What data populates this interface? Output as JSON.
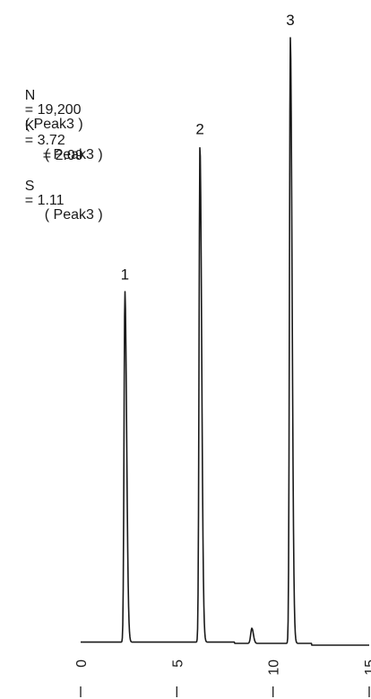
{
  "stats": [
    {
      "label": "N",
      "value": "= 19,200",
      "note": "( Peak3 )"
    },
    {
      "label": "K'",
      "value": "= 3.72",
      "note": "( Peak3 )"
    },
    {
      "label": "",
      "value": "= 2.09",
      "note": ""
    },
    {
      "label": "S",
      "value": "= 1.11",
      "note": "( Peak3 )"
    }
  ],
  "chart_data": {
    "type": "line",
    "title": "",
    "xlabel": "",
    "ylabel": "",
    "xlim": [
      0,
      15
    ],
    "x_ticks": [
      0,
      5,
      10,
      15
    ],
    "x_tick_labels": [
      "0",
      "5",
      "10",
      "15"
    ],
    "peaks": [
      {
        "label": "1",
        "time": 2.3,
        "height": 0.58
      },
      {
        "label": "2",
        "time": 6.2,
        "height": 0.82
      },
      {
        "label": "3",
        "time": 10.9,
        "height": 1.0
      }
    ],
    "minor_peak": {
      "time": 8.9,
      "height": 0.025
    },
    "colors": {
      "trace": "#1a1a1a"
    }
  }
}
